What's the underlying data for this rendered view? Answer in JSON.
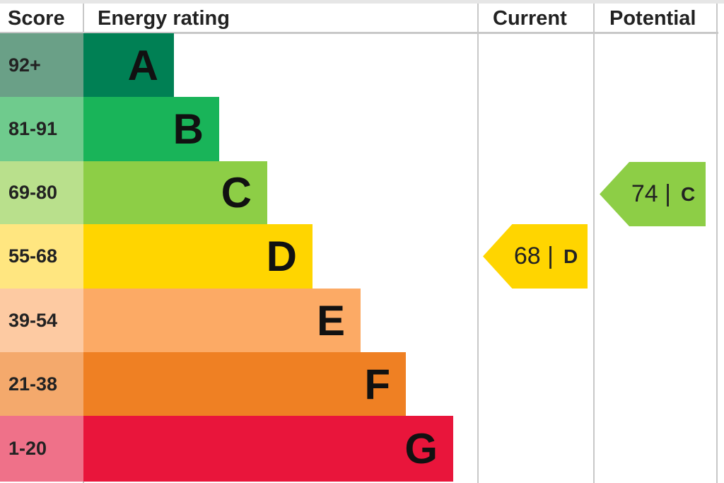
{
  "chart_data": {
    "type": "table",
    "headers": {
      "score": "Score",
      "rating": "Energy rating",
      "current": "Current",
      "potential": "Potential"
    },
    "bands": [
      {
        "range": "92+",
        "letter": "A",
        "color": "#008054",
        "score_color": "#6aa087"
      },
      {
        "range": "81-91",
        "letter": "B",
        "color": "#19b459",
        "score_color": "#6fcb8d"
      },
      {
        "range": "69-80",
        "letter": "C",
        "color": "#8dce46",
        "score_color": "#b9e08c"
      },
      {
        "range": "55-68",
        "letter": "D",
        "color": "#ffd500",
        "score_color": "#ffe680"
      },
      {
        "range": "39-54",
        "letter": "E",
        "color": "#fcaa65",
        "score_color": "#fdcaa2"
      },
      {
        "range": "21-38",
        "letter": "F",
        "color": "#ef8023",
        "score_color": "#f4a96c"
      },
      {
        "range": "1-20",
        "letter": "G",
        "color": "#e9153b",
        "score_color": "#ef7189"
      }
    ],
    "current": {
      "value": "68",
      "sep": "|",
      "letter": "D",
      "color": "#ffd500"
    },
    "potential": {
      "value": "74",
      "sep": "|",
      "letter": "C",
      "color": "#8dce46"
    }
  }
}
